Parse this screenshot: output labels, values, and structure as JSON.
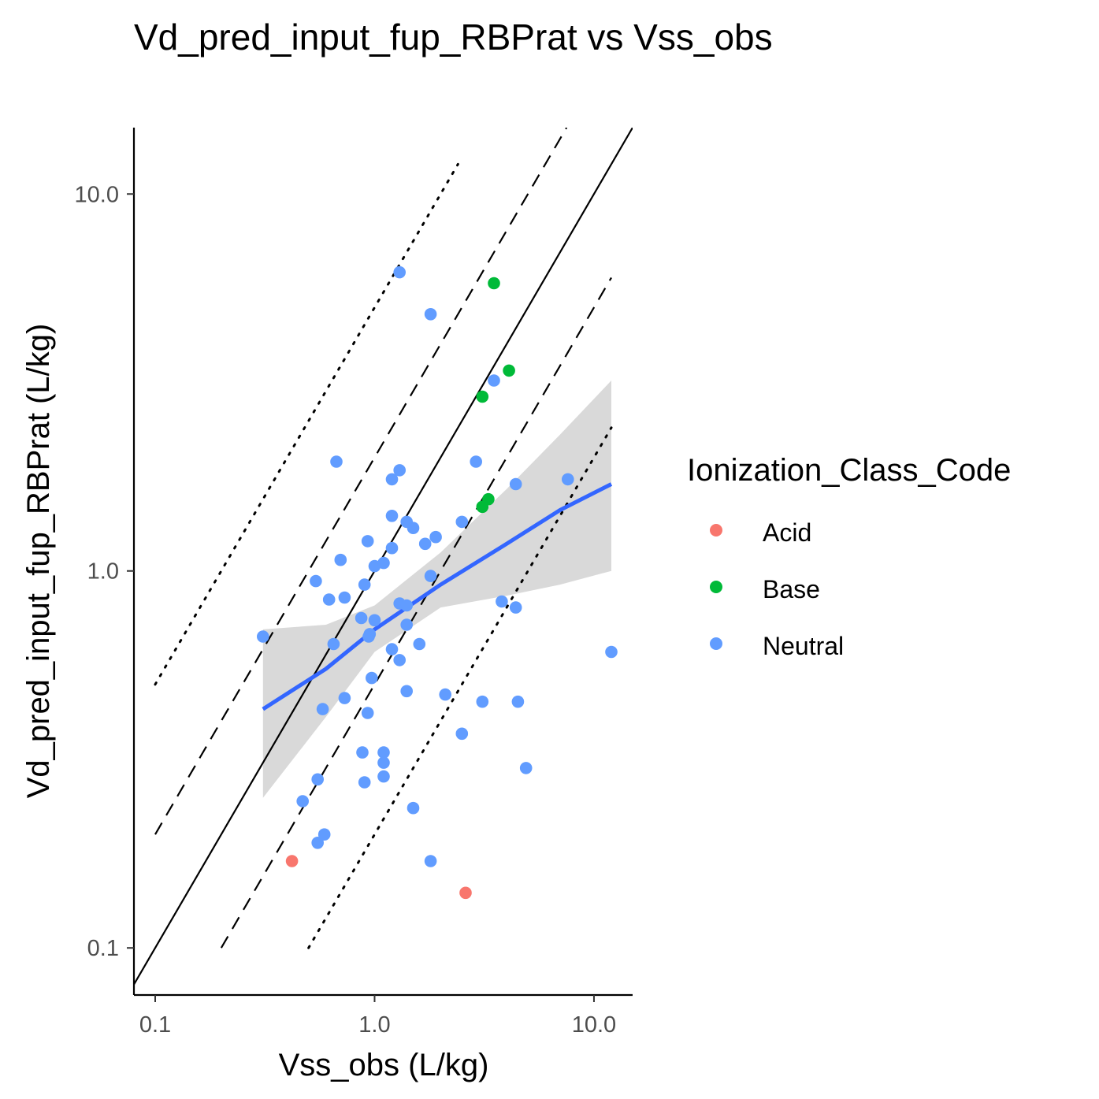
{
  "chart_data": {
    "type": "scatter",
    "title": "Vd_pred_input_fup_RBPrat vs Vss_obs",
    "xlabel": "Vss_obs (L/kg)",
    "ylabel": "Vd_pred_input_fup_RBPrat (L/kg)",
    "x_scale": "log10",
    "y_scale": "log10",
    "xlim": [
      0.08,
      15
    ],
    "ylim": [
      0.075,
      15
    ],
    "x_ticks": [
      0.1,
      1.0,
      10.0
    ],
    "x_tick_labels": [
      "0.1",
      "1.0",
      "10.0"
    ],
    "y_ticks": [
      0.1,
      1.0,
      10.0
    ],
    "y_tick_labels": [
      "0.1",
      "1.0",
      "10.0"
    ],
    "grid": false,
    "legend": {
      "title": "Ionization_Class_Code",
      "placement": "right",
      "entries": [
        {
          "label": "Acid",
          "color": "#F8766D"
        },
        {
          "label": "Base",
          "color": "#00BA38"
        },
        {
          "label": "Neutral",
          "color": "#619CFF"
        }
      ]
    },
    "reference_lines": [
      {
        "name": "identity",
        "style": "solid",
        "color": "#000000",
        "points": [
          [
            0.08,
            0.08
          ],
          [
            15,
            15
          ]
        ]
      },
      {
        "name": "2-fold upper",
        "style": "dashed",
        "color": "#000000",
        "points": [
          [
            0.1,
            0.2
          ],
          [
            7.5,
            15
          ]
        ]
      },
      {
        "name": "2-fold lower",
        "style": "dashed",
        "color": "#000000",
        "points": [
          [
            0.2,
            0.1
          ],
          [
            12,
            6
          ]
        ]
      },
      {
        "name": "5-fold upper",
        "style": "dotted",
        "color": "#000000",
        "points": [
          [
            0.1,
            0.5
          ],
          [
            2.4,
            12
          ]
        ]
      },
      {
        "name": "5-fold lower",
        "style": "dotted",
        "color": "#000000",
        "points": [
          [
            0.5,
            0.1
          ],
          [
            12,
            2.4
          ]
        ]
      }
    ],
    "regression": {
      "color": "#3366FF",
      "band_color": "#d9d9d9",
      "x": [
        0.31,
        0.6,
        1.0,
        2.0,
        4.0,
        7.0,
        12.0
      ],
      "y": [
        0.43,
        0.55,
        0.7,
        0.92,
        1.18,
        1.45,
        1.7
      ],
      "y_low": [
        0.25,
        0.41,
        0.61,
        0.8,
        0.86,
        0.92,
        1.0
      ],
      "y_high": [
        0.7,
        0.72,
        0.81,
        1.12,
        1.65,
        2.3,
        3.2
      ]
    },
    "series": [
      {
        "name": "Acid",
        "color": "#F8766D",
        "x": [
          0.42,
          2.6
        ],
        "y": [
          0.17,
          0.14
        ]
      },
      {
        "name": "Base",
        "color": "#00BA38",
        "x": [
          3.5,
          4.1,
          3.1,
          3.3,
          3.1
        ],
        "y": [
          5.8,
          3.4,
          2.9,
          1.55,
          1.48
        ]
      },
      {
        "name": "Neutral",
        "color": "#619CFF",
        "x": [
          1.3,
          1.8,
          3.5,
          0.67,
          1.3,
          1.2,
          2.9,
          4.4,
          7.6,
          1.4,
          1.2,
          1.5,
          2.5,
          0.93,
          1.2,
          1.7,
          1.9,
          0.7,
          1.0,
          1.1,
          1.8,
          0.54,
          0.9,
          0.62,
          0.73,
          1.3,
          1.4,
          3.8,
          4.4,
          0.87,
          1.0,
          1.4,
          0.95,
          1.2,
          1.6,
          0.65,
          1.3,
          12.0,
          0.97,
          1.4,
          0.73,
          2.1,
          3.1,
          4.5,
          0.58,
          0.93,
          2.5,
          0.88,
          1.1,
          1.1,
          4.9,
          0.55,
          1.1,
          0.9,
          0.47,
          1.5,
          0.59,
          0.55,
          1.8,
          0.31,
          0.94
        ],
        "y": [
          6.2,
          4.8,
          3.2,
          1.95,
          1.85,
          1.75,
          1.95,
          1.7,
          1.75,
          1.35,
          1.4,
          1.3,
          1.35,
          1.2,
          1.15,
          1.18,
          1.23,
          1.07,
          1.03,
          1.05,
          0.97,
          0.94,
          0.92,
          0.84,
          0.85,
          0.82,
          0.81,
          0.83,
          0.8,
          0.75,
          0.74,
          0.72,
          0.68,
          0.62,
          0.64,
          0.64,
          0.58,
          0.61,
          0.52,
          0.48,
          0.46,
          0.47,
          0.45,
          0.45,
          0.43,
          0.42,
          0.37,
          0.33,
          0.33,
          0.31,
          0.3,
          0.28,
          0.285,
          0.275,
          0.245,
          0.235,
          0.2,
          0.19,
          0.17,
          0.67,
          0.67
        ]
      }
    ]
  }
}
